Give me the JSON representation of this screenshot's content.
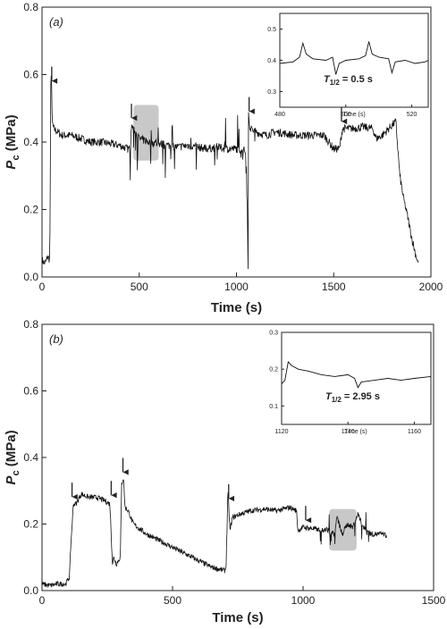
{
  "chart_data": [
    {
      "type": "line",
      "panel_label": "(a)",
      "xlabel": "Time (s)",
      "ylabel_main": "P",
      "ylabel_sub": "c",
      "ylabel_unit": " (MPa)",
      "xlim": [
        0,
        2000
      ],
      "ylim": [
        0.0,
        0.8
      ],
      "xticks": [
        "0",
        "500",
        "1000",
        "1500",
        "2000"
      ],
      "yticks": [
        "0.0",
        "0.2",
        "0.4",
        "0.6",
        "0.8"
      ],
      "arrows_x": [
        50,
        460,
        1065,
        1540
      ],
      "highlight_x": [
        470,
        600
      ],
      "highlight_y": [
        0.345,
        0.51
      ],
      "series": [
        {
          "x": [
            0,
            15,
            30,
            40,
            45,
            48,
            52,
            60,
            80,
            100,
            150,
            200,
            250,
            300,
            350,
            400,
            440,
            455,
            460,
            470,
            500,
            550,
            600,
            650,
            700,
            750,
            800,
            850,
            900,
            950,
            1000,
            1040,
            1050,
            1055,
            1060,
            1062,
            1066,
            1070,
            1100,
            1150,
            1200,
            1250,
            1300,
            1350,
            1400,
            1450,
            1500,
            1530,
            1540,
            1545,
            1600,
            1650,
            1700,
            1720,
            1750,
            1800,
            1820,
            1840,
            1860,
            1880,
            1900,
            1920,
            1935
          ],
          "y": [
            0.05,
            0.04,
            0.06,
            0.05,
            0.56,
            0.62,
            0.46,
            0.44,
            0.43,
            0.42,
            0.42,
            0.41,
            0.4,
            0.4,
            0.395,
            0.39,
            0.38,
            0.38,
            0.45,
            0.44,
            0.41,
            0.4,
            0.395,
            0.39,
            0.385,
            0.39,
            0.385,
            0.38,
            0.385,
            0.38,
            0.38,
            0.375,
            0.37,
            0.2,
            0.02,
            0.5,
            0.46,
            0.44,
            0.43,
            0.42,
            0.43,
            0.425,
            0.42,
            0.42,
            0.42,
            0.42,
            0.38,
            0.38,
            0.42,
            0.44,
            0.44,
            0.445,
            0.44,
            0.41,
            0.42,
            0.45,
            0.46,
            0.3,
            0.23,
            0.18,
            0.12,
            0.07,
            0.04
          ]
        }
      ],
      "inset": {
        "xlabel": "Time (s)",
        "xlim": [
          480,
          525
        ],
        "ylim": [
          0.25,
          0.55
        ],
        "xticks": [
          "480",
          "500",
          "520"
        ],
        "yticks": [
          "0.3",
          "0.4",
          "0.5"
        ],
        "annotation_main": "T",
        "annotation_sub": "1/2",
        "annotation_value": " = 0.5 s",
        "series": [
          {
            "x": [
              480,
              484,
              486,
              487,
              488,
              490,
              494,
              496,
              497,
              498,
              500,
              504,
              506,
              507,
              508,
              510,
              513,
              514,
              515,
              518,
              521,
              524,
              525
            ],
            "y": [
              0.39,
              0.395,
              0.41,
              0.455,
              0.42,
              0.405,
              0.4,
              0.41,
              0.355,
              0.39,
              0.4,
              0.405,
              0.415,
              0.46,
              0.42,
              0.41,
              0.405,
              0.36,
              0.395,
              0.4,
              0.39,
              0.395,
              0.4
            ]
          }
        ]
      }
    },
    {
      "type": "line",
      "panel_label": "(b)",
      "xlabel": "Time (s)",
      "ylabel_main": "P",
      "ylabel_sub": "c",
      "ylabel_unit": " (MPa)",
      "xlim": [
        0,
        1500
      ],
      "ylim": [
        0.0,
        0.8
      ],
      "xticks": [
        "0",
        "500",
        "1000",
        "1500"
      ],
      "yticks": [
        "0.0",
        "0.2",
        "0.4",
        "0.6",
        "0.8"
      ],
      "arrows_x": [
        115,
        265,
        310,
        715,
        1010
      ],
      "highlight_x": [
        1100,
        1205
      ],
      "highlight_y": [
        0.12,
        0.245
      ],
      "series": [
        {
          "x": [
            0,
            30,
            60,
            90,
            105,
            110,
            120,
            130,
            150,
            180,
            210,
            240,
            260,
            270,
            275,
            285,
            300,
            305,
            312,
            318,
            330,
            350,
            400,
            450,
            500,
            550,
            600,
            650,
            700,
            705,
            712,
            720,
            730,
            760,
            800,
            850,
            900,
            950,
            975,
            980,
            1000,
            1050,
            1100,
            1120,
            1130,
            1150,
            1170,
            1190,
            1210,
            1230,
            1260,
            1300,
            1320
          ],
          "y": [
            0.02,
            0.015,
            0.02,
            0.02,
            0.04,
            0.13,
            0.26,
            0.26,
            0.29,
            0.28,
            0.28,
            0.27,
            0.26,
            0.08,
            0.1,
            0.08,
            0.1,
            0.32,
            0.34,
            0.25,
            0.24,
            0.2,
            0.17,
            0.15,
            0.13,
            0.11,
            0.09,
            0.07,
            0.06,
            0.07,
            0.3,
            0.18,
            0.22,
            0.23,
            0.24,
            0.245,
            0.24,
            0.25,
            0.24,
            0.18,
            0.19,
            0.185,
            0.18,
            0.17,
            0.22,
            0.17,
            0.2,
            0.19,
            0.23,
            0.19,
            0.17,
            0.17,
            0.165
          ]
        }
      ],
      "inset": {
        "xlabel": "Time (s)",
        "xlim": [
          1120,
          1165
        ],
        "ylim": [
          0.05,
          0.3
        ],
        "xticks": [
          "1120",
          "1140",
          "1160"
        ],
        "yticks": [
          "0.1",
          "0.2",
          "0.3"
        ],
        "annotation_main": "T",
        "annotation_sub": "1/2",
        "annotation_value": " = 2.95 s",
        "series": [
          {
            "x": [
              1120,
              1121,
              1122,
              1123,
              1125,
              1128,
              1132,
              1136,
              1140,
              1142,
              1143,
              1144,
              1148,
              1152,
              1156,
              1160,
              1165
            ],
            "y": [
              0.16,
              0.17,
              0.22,
              0.21,
              0.2,
              0.195,
              0.185,
              0.18,
              0.185,
              0.175,
              0.15,
              0.165,
              0.17,
              0.175,
              0.17,
              0.175,
              0.18
            ]
          }
        ]
      }
    }
  ]
}
